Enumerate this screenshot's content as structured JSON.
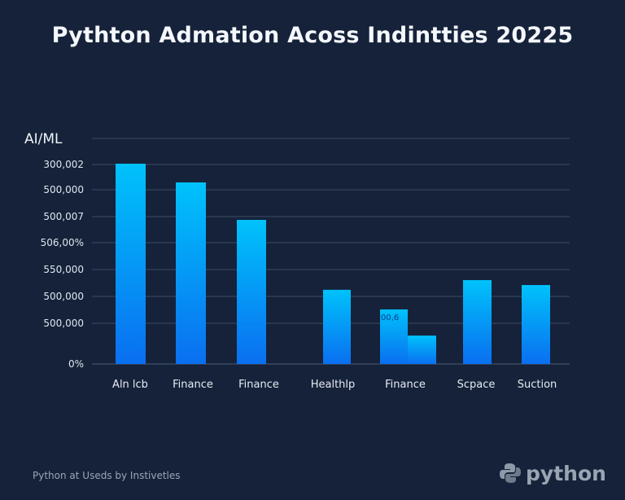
{
  "chart_data": {
    "type": "bar",
    "title": "Pythton Admation Acoss Indintties 20225",
    "ylabel": "AI/ML",
    "y_tick_labels": [
      "0%",
      "500,000",
      "500,000",
      "550,000",
      "506,00%",
      "500,007",
      "500,000",
      "300,002"
    ],
    "categories": [
      "Aln lcb",
      "Finance",
      "Finance",
      "Healthlp",
      "Finance",
      "Finance",
      "Scpace",
      "Suction"
    ],
    "category_labels_shown": [
      "Aln lcb",
      "Finance",
      "Finance",
      "Healthlp",
      "Finance",
      "Scpace",
      "Suction"
    ],
    "values": [
      88.8,
      80.5,
      63.9,
      32.9,
      24.2,
      12.6,
      37.2,
      35.0
    ],
    "value_units": "percent of plot height (axis ticks are unreadable)",
    "ylim": [
      0,
      100
    ],
    "data_labels": [
      {
        "category_index": 4,
        "text": "00,6"
      }
    ],
    "grid": true,
    "bar_gradient": [
      "#00c2fb",
      "#0a6ff0"
    ],
    "background": "#15223a"
  },
  "footer": {
    "source": "Python at Useds by Instivetles"
  },
  "logo": {
    "text": "python"
  }
}
